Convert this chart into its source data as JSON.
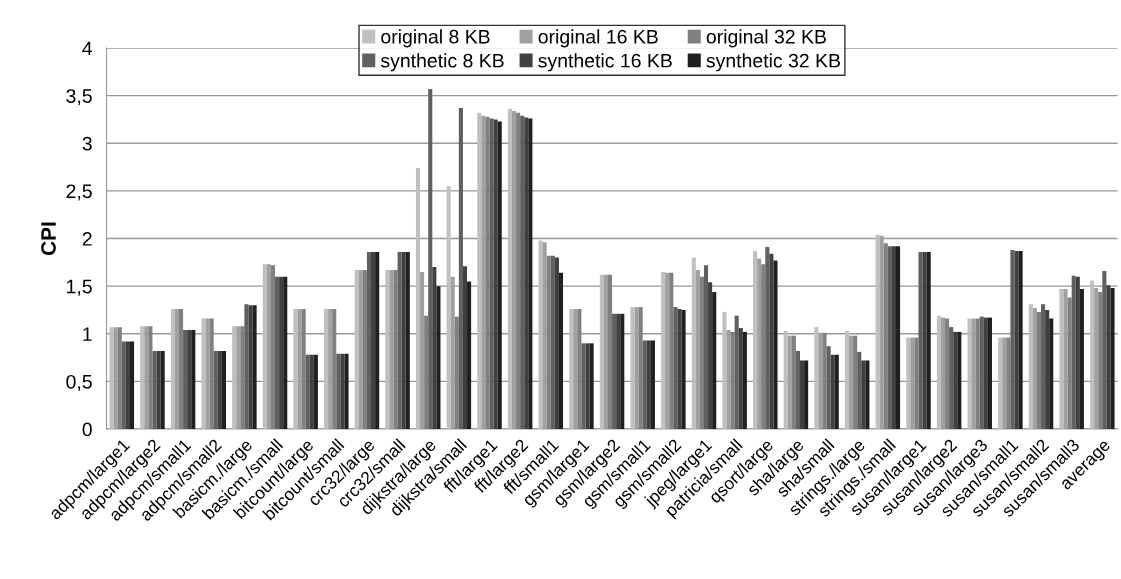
{
  "chart_data": {
    "type": "bar",
    "ylabel": "CPI",
    "categories": [
      "adpcm/large1",
      "adpcm/large2",
      "adpcm/small1",
      "adpcm/small2",
      "basicm./large",
      "basicm./small",
      "bitcount/large",
      "bitcount/small",
      "crc32/large",
      "crc32/small",
      "dijkstra/large",
      "dijkstra/small",
      "fft/large1",
      "fft/large2",
      "fft/small1",
      "gsm/large1",
      "gsm/large2",
      "gsm/small1",
      "gsm/small2",
      "jpeg/large1",
      "patricia/small",
      "qsort/large",
      "sha/large",
      "sha/small",
      "strings./large",
      "strings./small",
      "susan/large1",
      "susan/large2",
      "susan/large3",
      "susan/small1",
      "susan/small2",
      "susan/small3",
      "average"
    ],
    "series": [
      {
        "name": "original 8 KB",
        "color": "#c0c0c0",
        "values": [
          1.07,
          1.08,
          1.26,
          1.16,
          1.08,
          1.73,
          1.26,
          1.26,
          1.67,
          1.67,
          2.74,
          2.55,
          3.32,
          3.36,
          1.98,
          1.26,
          1.62,
          1.28,
          1.65,
          1.8,
          1.23,
          1.87,
          1.03,
          1.07,
          1.03,
          2.04,
          0.96,
          1.19,
          1.16,
          0.96,
          1.31,
          1.47,
          1.56
        ]
      },
      {
        "name": "original 16 KB",
        "color": "#a0a0a0",
        "values": [
          1.07,
          1.08,
          1.26,
          1.16,
          1.08,
          1.73,
          1.26,
          1.26,
          1.67,
          1.67,
          1.65,
          1.6,
          3.29,
          3.34,
          1.96,
          1.26,
          1.62,
          1.28,
          1.64,
          1.67,
          1.04,
          1.79,
          0.98,
          1.01,
          0.98,
          2.03,
          0.96,
          1.17,
          1.16,
          0.96,
          1.27,
          1.47,
          1.48
        ]
      },
      {
        "name": "original 32 KB",
        "color": "#808080",
        "values": [
          1.07,
          1.08,
          1.26,
          1.16,
          1.08,
          1.72,
          1.26,
          1.26,
          1.67,
          1.67,
          1.19,
          1.18,
          3.28,
          3.32,
          1.82,
          1.26,
          1.62,
          1.28,
          1.64,
          1.6,
          1.02,
          1.73,
          0.98,
          1.01,
          0.98,
          1.95,
          0.96,
          1.16,
          1.16,
          0.96,
          1.23,
          1.38,
          1.44
        ]
      },
      {
        "name": "synthetic 8 KB",
        "color": "#606060",
        "values": [
          0.92,
          0.82,
          1.04,
          0.82,
          1.31,
          1.6,
          0.78,
          0.79,
          1.86,
          1.86,
          3.57,
          3.37,
          3.26,
          3.29,
          1.82,
          0.9,
          1.21,
          0.93,
          1.28,
          1.72,
          1.19,
          1.91,
          0.82,
          0.87,
          0.81,
          1.92,
          1.86,
          1.07,
          1.18,
          1.88,
          1.31,
          1.61,
          1.66
        ]
      },
      {
        "name": "synthetic 16 KB",
        "color": "#404040",
        "values": [
          0.92,
          0.82,
          1.04,
          0.82,
          1.3,
          1.6,
          0.78,
          0.79,
          1.86,
          1.86,
          1.7,
          1.71,
          3.25,
          3.27,
          1.8,
          0.9,
          1.21,
          0.93,
          1.26,
          1.54,
          1.06,
          1.84,
          0.72,
          0.78,
          0.72,
          1.92,
          1.86,
          1.02,
          1.17,
          1.87,
          1.25,
          1.6,
          1.51
        ]
      },
      {
        "name": "synthetic 32 KB",
        "color": "#202020",
        "values": [
          0.92,
          0.82,
          1.04,
          0.82,
          1.3,
          1.6,
          0.78,
          0.79,
          1.86,
          1.86,
          1.5,
          1.55,
          3.23,
          3.26,
          1.64,
          0.9,
          1.21,
          0.93,
          1.25,
          1.44,
          1.02,
          1.77,
          0.72,
          0.78,
          0.72,
          1.92,
          1.86,
          1.02,
          1.17,
          1.87,
          1.16,
          1.47,
          1.48
        ]
      }
    ],
    "ylim": [
      0,
      4
    ],
    "yticks": [
      0,
      {
        "value": 0.5,
        "label": "0,5"
      },
      1,
      {
        "value": 1.5,
        "label": "1,5"
      },
      2,
      {
        "value": 2.5,
        "label": "2,5"
      },
      3,
      {
        "value": 3.5,
        "label": "3,5"
      },
      4
    ],
    "grid": "y",
    "legend": "top"
  }
}
